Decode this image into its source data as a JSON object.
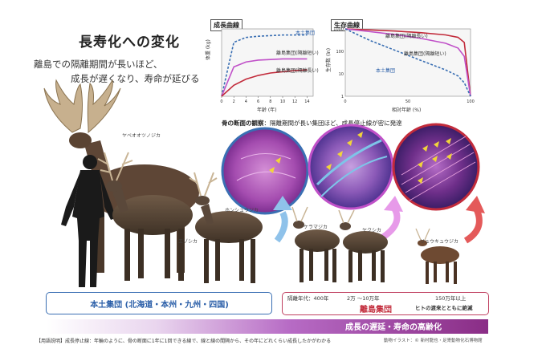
{
  "title": "長寿化への変化",
  "lead": {
    "line1": "離島での隔離期間が長いほど、",
    "line2": "成長が遅くなり、寿命が延びる"
  },
  "growth_chart": {
    "title": "成長曲線",
    "ylabel": "体重 (kg)",
    "xlabel": "年齢 (年)",
    "x_ticks": [
      "0",
      "2",
      "4",
      "6",
      "8",
      "10",
      "12",
      "14"
    ],
    "legend": [
      "本土集団",
      "離島集団(隔離短い)",
      "離島集団(隔離長い)"
    ],
    "chart_data": {
      "type": "line",
      "x": [
        0,
        2,
        4,
        6,
        8,
        10,
        12,
        14
      ],
      "series": [
        {
          "name": "本土集団",
          "values": [
            0,
            88,
            96,
            98,
            99,
            100,
            100,
            100
          ],
          "color": "#3a6fb3",
          "style": "dashed"
        },
        {
          "name": "離島集団(隔離短い)",
          "values": [
            0,
            48,
            56,
            59,
            60,
            61,
            61,
            61
          ],
          "color": "#c050c8",
          "style": "solid"
        },
        {
          "name": "離島集団(隔離長い)",
          "values": [
            0,
            18,
            28,
            34,
            38,
            40,
            42,
            43
          ],
          "color": "#c22b3b",
          "style": "solid"
        }
      ],
      "xlim": [
        0,
        15
      ],
      "ylim": [
        0,
        110
      ]
    }
  },
  "survival_chart": {
    "title": "生存曲線",
    "ylabel": "生存数 (ln)",
    "xlabel": "相対年齢 (%)",
    "y_ticks": [
      "1000",
      "100",
      "10",
      "1"
    ],
    "x_ticks": [
      "0",
      "50",
      "100"
    ],
    "legend": [
      "離島集団(隔離長い)",
      "離島集団(隔離短い)",
      "本土集団"
    ],
    "chart_data": {
      "type": "line",
      "x": [
        0,
        20,
        40,
        60,
        80,
        90,
        95,
        100
      ],
      "series": [
        {
          "name": "離島集団(隔離長い)",
          "values": [
            1000,
            900,
            800,
            680,
            540,
            420,
            250,
            1
          ],
          "color": "#c22b3b",
          "style": "solid"
        },
        {
          "name": "離島集団(隔離短い)",
          "values": [
            1000,
            750,
            560,
            380,
            230,
            140,
            60,
            1
          ],
          "color": "#c050c8",
          "style": "solid"
        },
        {
          "name": "本土集団",
          "values": [
            1000,
            300,
            110,
            40,
            15,
            8,
            4,
            1
          ],
          "color": "#3a6fb3",
          "style": "dashed"
        }
      ],
      "xlim": [
        0,
        100
      ],
      "ylim": [
        1,
        1000
      ]
    }
  },
  "bone_section": {
    "title": "骨の断面の観察",
    "note": "：隔離期間が長い集団ほど、成長停止線が密に発達"
  },
  "species": {
    "yabe": "ヤベオオツノジカ",
    "ezo": "エゾシカ",
    "honshu": "ホンシュウジカ",
    "keramashi": "ケラマジカ",
    "yakushika": "ヤクシカ",
    "ryukyu": "リュウキュウジカ"
  },
  "mainland": {
    "label": "本土集団 (北海道・本州・九州・四国)"
  },
  "island": {
    "label": "離島集団",
    "period_label": "隔離年代：400年",
    "period_mid": "2万 〜10万年",
    "period_long": "150万年以上",
    "extinct_note": "ヒトの渡来とともに絶滅"
  },
  "band_text": "成長の遅延・寿命の高齢化",
  "footnote": "【用語説明】成長停止線：年輪のように、骨の断面に1年に1回できる線で、線と線の間隔から、その年にどれくらい成長したかがわかる",
  "credit": "動物イラスト：© 新村龍也・足寄動物化石博物館",
  "colors": {
    "mainland": "#3a6fb3",
    "island_short": "#c050c8",
    "island_long": "#c22b3b"
  }
}
